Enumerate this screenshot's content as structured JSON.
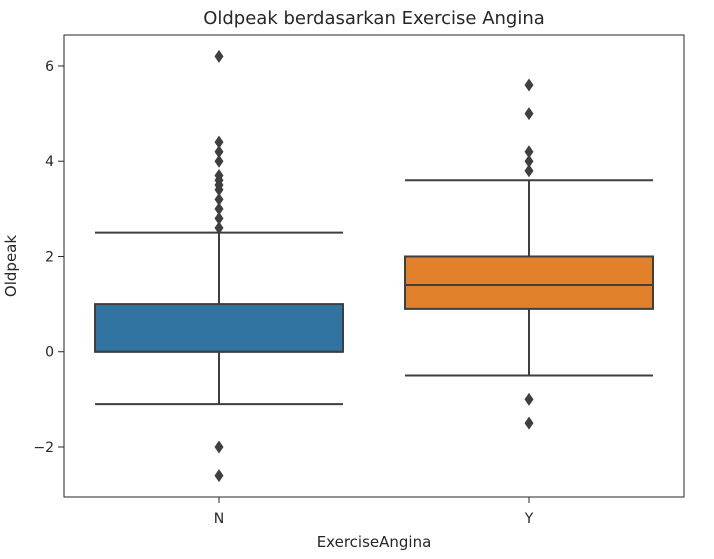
{
  "chart_data": {
    "type": "box",
    "title": "Oldpeak berdasarkan Exercise Angina",
    "xlabel": "ExerciseAngina",
    "ylabel": "Oldpeak",
    "ylim": [
      -3.05,
      6.65
    ],
    "yticks": [
      -2,
      0,
      2,
      4,
      6
    ],
    "ytick_labels": [
      "−2",
      "0",
      "2",
      "4",
      "6"
    ],
    "grid": false,
    "categories": [
      "N",
      "Y"
    ],
    "boxes": [
      {
        "category": "N",
        "color": "#3274a1",
        "whisker_low": -1.1,
        "q1": 0.0,
        "median": 0.0,
        "q3": 1.0,
        "whisker_high": 2.5,
        "outliers": [
          -2.6,
          -2.0,
          2.6,
          2.8,
          3.0,
          3.2,
          3.4,
          3.5,
          3.6,
          3.7,
          4.0,
          4.2,
          4.4,
          6.2
        ]
      },
      {
        "category": "Y",
        "color": "#e1812c",
        "whisker_low": -0.5,
        "q1": 0.9,
        "median": 1.4,
        "q3": 2.0,
        "whisker_high": 3.6,
        "outliers": [
          -1.5,
          -1.0,
          3.8,
          4.0,
          4.2,
          5.0,
          5.6
        ]
      }
    ]
  }
}
